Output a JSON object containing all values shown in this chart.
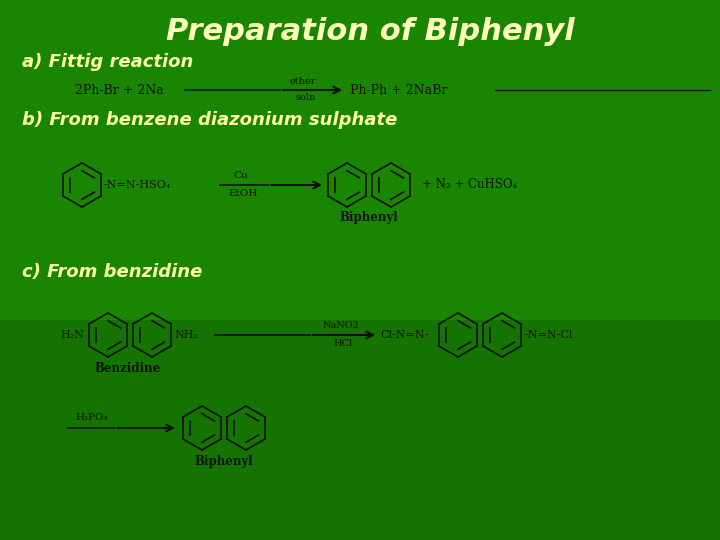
{
  "title": "Preparation of Biphenyl",
  "title_color": "#FFFFBB",
  "title_fontsize": 22,
  "title_style": "italic",
  "title_weight": "bold",
  "bg_color": "#1a8500",
  "bg_color2": "#0d5c00",
  "section_a_label": "a) Fittig reaction",
  "section_b_label": "b) From benzene diazonium sulphate",
  "section_c_label": "c) From benzidine",
  "label_color": "#FFFFAA",
  "label_fontsize": 13,
  "label_style": "italic",
  "label_weight": "bold",
  "text_color": "#111111",
  "chem_fontsize": 9,
  "small_fontsize": 8
}
